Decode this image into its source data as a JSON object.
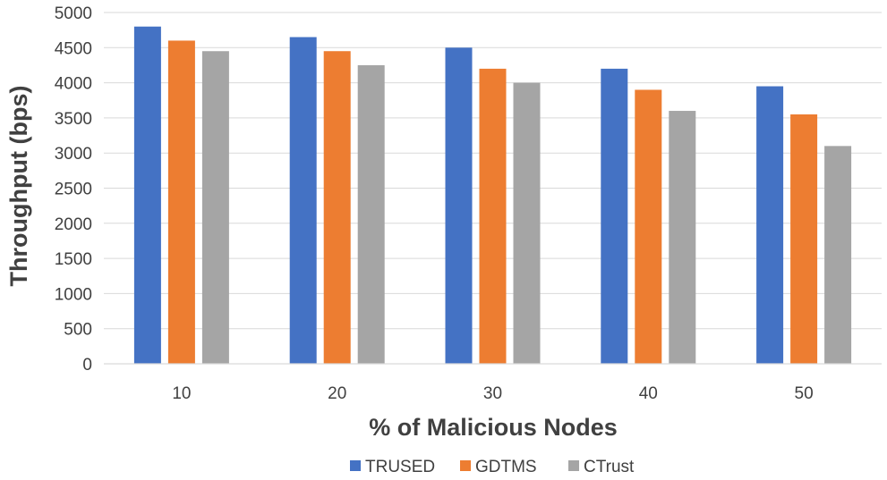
{
  "chart_data": {
    "type": "bar",
    "title": "",
    "xlabel": "% of Malicious Nodes",
    "ylabel": "Throughput (bps)",
    "categories": [
      "10",
      "20",
      "30",
      "40",
      "50"
    ],
    "series": [
      {
        "name": "TRUSED",
        "color": "#4472c4",
        "values": [
          4800,
          4650,
          4500,
          4200,
          3950
        ]
      },
      {
        "name": "GDTMS",
        "color": "#ed7d31",
        "values": [
          4600,
          4450,
          4200,
          3900,
          3550
        ]
      },
      {
        "name": "CTrust",
        "color": "#a5a5a5",
        "values": [
          4450,
          4250,
          4000,
          3600,
          3100
        ]
      }
    ],
    "yticks": [
      "0",
      "500",
      "1000",
      "1500",
      "2000",
      "2500",
      "3000",
      "3500",
      "4000",
      "4500",
      "5000"
    ],
    "ylim": [
      0,
      5000
    ],
    "grid": true,
    "legend": "bottom-center"
  }
}
